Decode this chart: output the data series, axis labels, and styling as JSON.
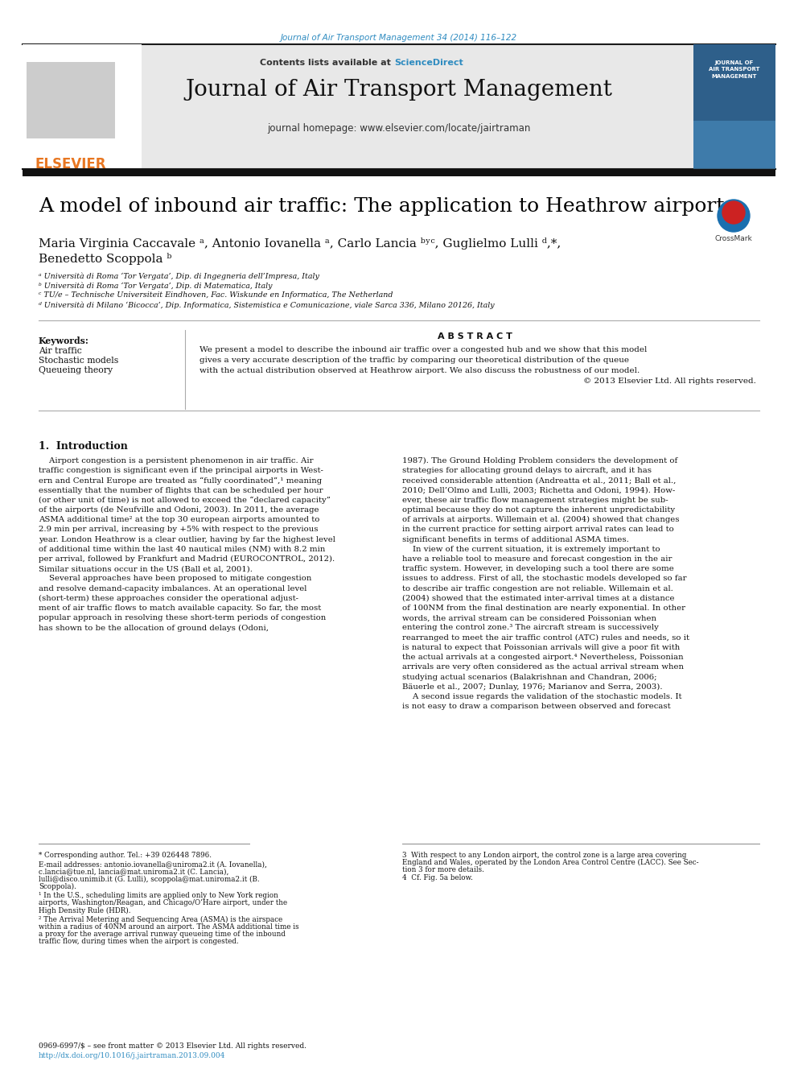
{
  "page_bg": "#ffffff",
  "top_journal_ref": "Journal of Air Transport Management 34 (2014) 116–122",
  "top_journal_ref_color": "#2e8bc0",
  "header_bg": "#e8e8e8",
  "header_border_color": "#000000",
  "elsevier_text_color": "#e87722",
  "journal_name": "Journal of Air Transport Management",
  "journal_homepage": "journal homepage: www.elsevier.com/locate/jairtraman",
  "header_contents_text": "Contents lists available at ",
  "header_sciencedirect": "ScienceDirect",
  "header_link_color": "#2e8bc0",
  "thick_bar_color": "#1a1a1a",
  "article_title": "A model of inbound air traffic: The application to Heathrow airport",
  "title_color": "#000000",
  "affil_a": "ᵃ Università di Roma ‘Tor Vergata’, Dip. di Ingegneria dell’Impresa, Italy",
  "affil_b": "ᵇ Università di Roma ‘Tor Vergata’, Dip. di Matematica, Italy",
  "affil_c": "ᶜ TU/e – Technische Universiteit Eindhoven, Fac. Wiskunde en Informatica, The Netherland",
  "affil_d": "ᵈ Università di Milano ‘Bicocca’, Dip. Informatica, Sistemistica e Comunicazione, viale Sarca 336, Milano 20126, Italy",
  "abstract_title": "A B S T R A C T",
  "keywords_label": "Keywords:",
  "keywords": [
    "Air traffic",
    "Stochastic models",
    "Queueing theory"
  ],
  "section1_title": "1.  Introduction",
  "footnote_star": "* Corresponding author. Tel.: +39 026448 7896.",
  "footnote_email": "E-mail addresses: antonio.iovanella@uniroma2.it (A. Iovanella), c.lancia@tue.nl, lancia@mat.uniroma2.it (C. Lancia), lulli@disco.unimib.it (G. Lulli), scoppola@mat.uniroma2.it (B. Scoppola).",
  "footnote_1": "¹ In the U.S., scheduling limits are applied only to New York region airports, Washington/Reagan, and Chicago/O’Hare airport, under the High Density Rule (HDR).",
  "footnote_2": "² The Arrival Metering and Sequencing Area (ASMA) is the airspace within a radius of 40NM around an airport. The ASMA additional time is a proxy for the average arrival runway queueing time of the inbound traffic flow, during times when the airport is congested.",
  "footnote_3_title": "3  With respect to any London airport, the control zone is a large area covering England and Wales, operated by the London Area Control Centre (LACC). See Section 3 for more details.",
  "footnote_4_title": "4  Cf. Fig. 5a below.",
  "bottom_line1": "0969-6997/$ – see front matter © 2013 Elsevier Ltd. All rights reserved.",
  "bottom_line2": "http://dx.doi.org/10.1016/j.jairtraman.2013.09.004",
  "link_color": "#2e8bc0",
  "text_color": "#000000",
  "left_col_lines": [
    "    Airport congestion is a persistent phenomenon in air traffic. Air",
    "traffic congestion is significant even if the principal airports in West-",
    "ern and Central Europe are treated as “fully coordinated”,¹ meaning",
    "essentially that the number of flights that can be scheduled per hour",
    "(or other unit of time) is not allowed to exceed the “declared capacity”",
    "of the airports (de Neufville and Odoni, 2003). In 2011, the average",
    "ASMA additional time² at the top 30 european airports amounted to",
    "2.9 min per arrival, increasing by +5% with respect to the previous",
    "year. London Heathrow is a clear outlier, having by far the highest level",
    "of additional time within the last 40 nautical miles (NM) with 8.2 min",
    "per arrival, followed by Frankfurt and Madrid (EUROCONTROL, 2012).",
    "Similar situations occur in the US (Ball et al, 2001).",
    "    Several approaches have been proposed to mitigate congestion",
    "and resolve demand-capacity imbalances. At an operational level",
    "(short-term) these approaches consider the operational adjust-",
    "ment of air traffic flows to match available capacity. So far, the most",
    "popular approach in resolving these short-term periods of congestion",
    "has shown to be the allocation of ground delays (Odoni,"
  ],
  "right_col_lines": [
    "1987). The Ground Holding Problem considers the development of",
    "strategies for allocating ground delays to aircraft, and it has",
    "received considerable attention (Andreatta et al., 2011; Ball et al.,",
    "2010; Dell’Olmo and Lulli, 2003; Richetta and Odoni, 1994). How-",
    "ever, these air traffic flow management strategies might be sub-",
    "optimal because they do not capture the inherent unpredictability",
    "of arrivals at airports. Willemain et al. (2004) showed that changes",
    "in the current practice for setting airport arrival rates can lead to",
    "significant benefits in terms of additional ASMA times.",
    "    In view of the current situation, it is extremely important to",
    "have a reliable tool to measure and forecast congestion in the air",
    "traffic system. However, in developing such a tool there are some",
    "issues to address. First of all, the stochastic models developed so far",
    "to describe air traffic congestion are not reliable. Willemain et al.",
    "(2004) showed that the estimated inter-arrival times at a distance",
    "of 100NM from the final destination are nearly exponential. In other",
    "words, the arrival stream can be considered Poissonian when",
    "entering the control zone.³ The aircraft stream is successively",
    "rearranged to meet the air traffic control (ATC) rules and needs, so it",
    "is natural to expect that Poissonian arrivals will give a poor fit with",
    "the actual arrivals at a congested airport.⁴ Nevertheless, Poissonian",
    "arrivals are very often considered as the actual arrival stream when",
    "studying actual scenarios (Balakrishnan and Chandran, 2006;",
    "Bäuerle et al., 2007; Dunlay, 1976; Marianov and Serra, 2003).",
    "    A second issue regards the validation of the stochastic models. It",
    "is not easy to draw a comparison between observed and forecast"
  ],
  "abstract_lines": [
    "We present a model to describe the inbound air traffic over a congested hub and we show that this model",
    "gives a very accurate description of the traffic by comparing our theoretical distribution of the queue",
    "with the actual distribution observed at Heathrow airport. We also discuss the robustness of our model.",
    "© 2013 Elsevier Ltd. All rights reserved."
  ],
  "right_col_footnotes": [
    "3  With respect to any London airport, the control zone is a large area covering",
    "England and Wales, operated by the London Area Control Centre (LACC). See Sec-",
    "tion 3 for more details.",
    "4  Cf. Fig. 5a below."
  ]
}
